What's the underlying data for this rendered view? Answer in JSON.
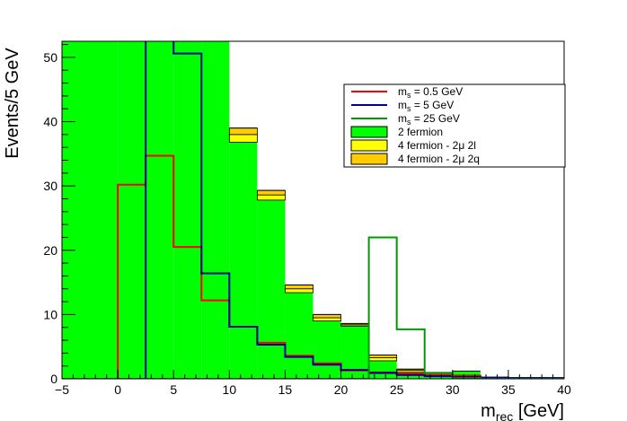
{
  "chart_data": {
    "type": "histogram",
    "xlabel": {
      "main": "m",
      "sub": "rec",
      "unit": " [GeV]"
    },
    "ylabel": "Events/5 GeV",
    "xlim": [
      -5,
      40
    ],
    "ylim": [
      0,
      52.5
    ],
    "xticks": [
      "−5",
      "0",
      "5",
      "10",
      "15",
      "20",
      "25",
      "30",
      "35",
      "40"
    ],
    "yticks": [
      "0",
      "10",
      "20",
      "30",
      "40",
      "50"
    ],
    "bin_edges": [
      -5,
      0,
      5,
      10,
      15,
      20,
      25,
      30,
      35,
      40
    ],
    "stack": [
      {
        "name": "2 fermion",
        "color": "#00ff00",
        "values": [
          {
            "x0": -5,
            "x1": 0,
            "y": 60
          },
          {
            "x0": 0,
            "x1": 5,
            "y": 60
          },
          {
            "x0": 5,
            "x1": 7.5,
            "y": 60
          },
          {
            "x0": 7.5,
            "x1": 10,
            "y": 60
          },
          {
            "x0": 10,
            "x1": 12.5,
            "y": 36.8
          },
          {
            "x0": 12.5,
            "x1": 15,
            "y": 27.8
          },
          {
            "x0": 15,
            "x1": 17.5,
            "y": 13.4
          },
          {
            "x0": 17.5,
            "x1": 20,
            "y": 9.0
          },
          {
            "x0": 20,
            "x1": 22.5,
            "y": 8.2
          },
          {
            "x0": 22.5,
            "x1": 25,
            "y": 2.8
          },
          {
            "x0": 25,
            "x1": 27.5,
            "y": 1.0
          },
          {
            "x0": 27.5,
            "x1": 30,
            "y": 1.0
          },
          {
            "x0": 30,
            "x1": 32.5,
            "y": 1.2
          },
          {
            "x0": 32.5,
            "x1": 35,
            "y": 0.2
          },
          {
            "x0": 35,
            "x1": 37.5,
            "y": 0.2
          },
          {
            "x0": 37.5,
            "x1": 40,
            "y": 0.2
          }
        ]
      },
      {
        "name": "4 fermion - 2μ 2l",
        "color": "#ffff00",
        "values": [
          {
            "x0": 10,
            "x1": 12.5,
            "y": 1.2
          },
          {
            "x0": 12.5,
            "x1": 15,
            "y": 0.8
          },
          {
            "x0": 15,
            "x1": 17.5,
            "y": 0.6
          },
          {
            "x0": 17.5,
            "x1": 20,
            "y": 0.5
          },
          {
            "x0": 20,
            "x1": 22.5,
            "y": 0.2
          },
          {
            "x0": 22.5,
            "x1": 25,
            "y": 0.5
          },
          {
            "x0": 25,
            "x1": 27.5,
            "y": 0.3
          }
        ]
      },
      {
        "name": "4 fermion - 2μ 2q",
        "color": "#ffcc00",
        "values": [
          {
            "x0": 10,
            "x1": 12.5,
            "y": 1.0
          },
          {
            "x0": 12.5,
            "x1": 15,
            "y": 0.7
          },
          {
            "x0": 15,
            "x1": 17.5,
            "y": 0.6
          },
          {
            "x0": 17.5,
            "x1": 20,
            "y": 0.5
          },
          {
            "x0": 20,
            "x1": 22.5,
            "y": 0.2
          },
          {
            "x0": 22.5,
            "x1": 25,
            "y": 0.4
          },
          {
            "x0": 25,
            "x1": 27.5,
            "y": 0.2
          }
        ]
      }
    ],
    "signals": [
      {
        "name": "m_s = 0.5 GeV",
        "sub": "s",
        "value": " = 0.5 GeV",
        "color": "#ff0000",
        "edges": [
          -5,
          0,
          2.5,
          5,
          7.5,
          10,
          12.5,
          15,
          17.5,
          20,
          22.5,
          25,
          27.5,
          30,
          32.5,
          35,
          37.5,
          40
        ],
        "values": [
          0,
          30.2,
          34.7,
          20.5,
          12.2,
          8.1,
          5.6,
          3.6,
          2.4,
          1.3,
          1.0,
          0.8,
          0.6,
          0.5,
          0.2,
          0.1,
          0.1
        ]
      },
      {
        "name": "m_s = 5 GeV",
        "sub": "s",
        "value": " = 5 GeV",
        "color": "#000099",
        "edges": [
          -5,
          2.5,
          5,
          7.5,
          10,
          12.5,
          15,
          17.5,
          20,
          22.5,
          25,
          27.5,
          30,
          32.5,
          35,
          37.5,
          40
        ],
        "values": [
          0,
          60,
          50.6,
          16.4,
          8.1,
          5.3,
          3.4,
          2.2,
          1.4,
          0.9,
          0.6,
          0.4,
          0.3,
          0.2,
          0.1,
          0.1
        ]
      },
      {
        "name": "m_s = 25 GeV",
        "sub": "s",
        "value": " = 25 GeV",
        "color": "#009900",
        "edges": [
          -5,
          22.5,
          25,
          27.5,
          30,
          32.5,
          35,
          37.5,
          40
        ],
        "values": [
          0,
          22.0,
          7.7,
          0.9,
          0.1,
          0,
          0,
          0
        ]
      }
    ],
    "legend": {
      "position": "top-right",
      "entries": [
        {
          "label": "m",
          "sub": "s",
          "rest": " = 0.5 GeV",
          "kind": "line",
          "color": "#ff0000"
        },
        {
          "label": "m",
          "sub": "s",
          "rest": " = 5 GeV",
          "kind": "line",
          "color": "#000099"
        },
        {
          "label": "m",
          "sub": "s",
          "rest": " = 25 GeV",
          "kind": "line",
          "color": "#009900"
        },
        {
          "label": "2 fermion",
          "sub": "",
          "rest": "",
          "kind": "box",
          "color": "#00ff00"
        },
        {
          "label": "4 fermion - 2μ 2l",
          "sub": "",
          "rest": "",
          "kind": "box",
          "color": "#ffff00"
        },
        {
          "label": "4 fermion - 2μ 2q",
          "sub": "",
          "rest": "",
          "kind": "box",
          "color": "#ffcc00"
        }
      ]
    },
    "grid": false
  }
}
